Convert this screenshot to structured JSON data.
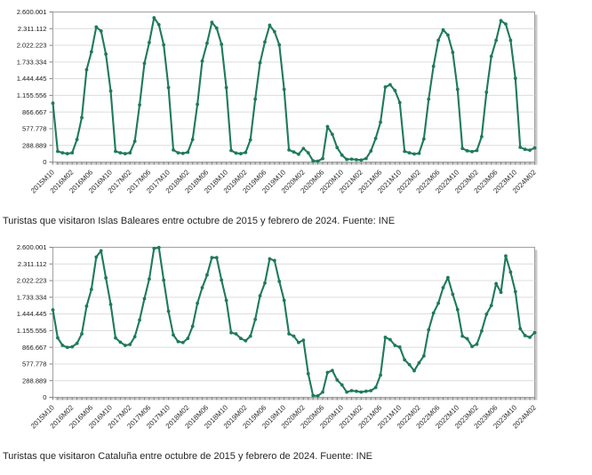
{
  "page": {
    "background": "#ffffff",
    "accent_line_color": "#1e7a5a",
    "gridline_color": "#dcdcdc",
    "plot_border_color": "#a0a0a0",
    "plot_shadow_color": "#c9c9c9",
    "axis_text_color": "#1a1a1a"
  },
  "chart_data": [
    {
      "type": "line",
      "title": "",
      "caption": "Turistas que visitaron Islas Baleares entre octubre de 2015 y febrero de 2024. Fuente: INE",
      "legend": "none",
      "grid": "horizontal",
      "marker": "circle",
      "line_color": "#1e7a5a",
      "ylim": [
        0,
        2600001
      ],
      "y_tick_labels": [
        "2.600.001",
        "2.311.112",
        "2.022.223",
        "1.733.334",
        "1.444.445",
        "1.155.556",
        "866.667",
        "577.778",
        "288.889",
        "0"
      ],
      "x_tick_step": 4,
      "x_tick_labels": [
        "2015M10",
        "2016M02",
        "2016M06",
        "2016M10",
        "2017M02",
        "2017M06",
        "2017M10",
        "2018M02",
        "2018M06",
        "2018M10",
        "2019M02",
        "2019M06",
        "2019M10",
        "2020M02",
        "2020M06",
        "2020M10",
        "2021M02",
        "2021M06",
        "2021M10",
        "2022M02",
        "2022M06",
        "2022M10",
        "2023M02",
        "2023M06",
        "2023M10",
        "2024M02"
      ],
      "x": [
        "2015M10",
        "2015M11",
        "2015M12",
        "2016M01",
        "2016M02",
        "2016M03",
        "2016M04",
        "2016M05",
        "2016M06",
        "2016M07",
        "2016M08",
        "2016M09",
        "2016M10",
        "2016M11",
        "2016M12",
        "2017M01",
        "2017M02",
        "2017M03",
        "2017M04",
        "2017M05",
        "2017M06",
        "2017M07",
        "2017M08",
        "2017M09",
        "2017M10",
        "2017M11",
        "2017M12",
        "2018M01",
        "2018M02",
        "2018M03",
        "2018M04",
        "2018M05",
        "2018M06",
        "2018M07",
        "2018M08",
        "2018M09",
        "2018M10",
        "2018M11",
        "2018M12",
        "2019M01",
        "2019M02",
        "2019M03",
        "2019M04",
        "2019M05",
        "2019M06",
        "2019M07",
        "2019M08",
        "2019M09",
        "2019M10",
        "2019M11",
        "2019M12",
        "2020M01",
        "2020M02",
        "2020M03",
        "2020M04",
        "2020M05",
        "2020M06",
        "2020M07",
        "2020M08",
        "2020M09",
        "2020M10",
        "2020M11",
        "2020M12",
        "2021M01",
        "2021M02",
        "2021M03",
        "2021M04",
        "2021M05",
        "2021M06",
        "2021M07",
        "2021M08",
        "2021M09",
        "2021M10",
        "2021M11",
        "2021M12",
        "2022M01",
        "2022M02",
        "2022M03",
        "2022M04",
        "2022M05",
        "2022M06",
        "2022M07",
        "2022M08",
        "2022M09",
        "2022M10",
        "2022M11",
        "2022M12",
        "2023M01",
        "2023M02",
        "2023M03",
        "2023M04",
        "2023M05",
        "2023M06",
        "2023M07",
        "2023M08",
        "2023M09",
        "2023M10",
        "2023M11",
        "2023M12",
        "2024M01",
        "2024M02"
      ],
      "series": [
        {
          "name": "Turistas Islas Baleares",
          "values": [
            1020000,
            185000,
            160000,
            145000,
            160000,
            390000,
            770000,
            1600000,
            1910000,
            2340000,
            2270000,
            1870000,
            1230000,
            185000,
            160000,
            145000,
            160000,
            360000,
            990000,
            1710000,
            2070000,
            2500000,
            2380000,
            2030000,
            1290000,
            210000,
            160000,
            150000,
            170000,
            390000,
            1000000,
            1750000,
            2060000,
            2420000,
            2320000,
            2040000,
            1290000,
            200000,
            155000,
            145000,
            165000,
            385000,
            1090000,
            1720000,
            2080000,
            2370000,
            2260000,
            2030000,
            1260000,
            210000,
            175000,
            135000,
            235000,
            160000,
            20000,
            15000,
            60000,
            615000,
            480000,
            250000,
            120000,
            45000,
            50000,
            40000,
            35000,
            60000,
            190000,
            410000,
            690000,
            1300000,
            1340000,
            1240000,
            1030000,
            185000,
            160000,
            140000,
            150000,
            400000,
            1090000,
            1660000,
            2110000,
            2290000,
            2200000,
            1900000,
            1260000,
            235000,
            195000,
            180000,
            200000,
            440000,
            1210000,
            1830000,
            2110000,
            2450000,
            2390000,
            2110000,
            1450000,
            255000,
            220000,
            205000,
            245000
          ]
        }
      ]
    },
    {
      "type": "line",
      "title": "",
      "caption": "Turistas que visitaron Cataluña entre octubre de 2015 y febrero de 2024. Fuente: INE",
      "legend": "none",
      "grid": "horizontal",
      "marker": "circle",
      "line_color": "#1e7a5a",
      "ylim": [
        0,
        2600001
      ],
      "y_tick_labels": [
        "2.600.001",
        "2.311.112",
        "2.022.223",
        "1.733.334",
        "1.444.445",
        "1.155.556",
        "866.667",
        "577.778",
        "288.889",
        "0"
      ],
      "x_tick_step": 4,
      "x_tick_labels": [
        "2015M10",
        "2016M02",
        "2016M06",
        "2016M10",
        "2017M02",
        "2017M06",
        "2017M10",
        "2018M02",
        "2018M06",
        "2018M10",
        "2019M02",
        "2019M06",
        "2019M10",
        "2020M02",
        "2020M06",
        "2020M10",
        "2021M02",
        "2021M06",
        "2021M10",
        "2022M02",
        "2022M06",
        "2022M10",
        "2023M02",
        "2023M06",
        "2023M10",
        "2024M02"
      ],
      "x": [
        "2015M10",
        "2015M11",
        "2015M12",
        "2016M01",
        "2016M02",
        "2016M03",
        "2016M04",
        "2016M05",
        "2016M06",
        "2016M07",
        "2016M08",
        "2016M09",
        "2016M10",
        "2016M11",
        "2016M12",
        "2017M01",
        "2017M02",
        "2017M03",
        "2017M04",
        "2017M05",
        "2017M06",
        "2017M07",
        "2017M08",
        "2017M09",
        "2017M10",
        "2017M11",
        "2017M12",
        "2018M01",
        "2018M02",
        "2018M03",
        "2018M04",
        "2018M05",
        "2018M06",
        "2018M07",
        "2018M08",
        "2018M09",
        "2018M10",
        "2018M11",
        "2018M12",
        "2019M01",
        "2019M02",
        "2019M03",
        "2019M04",
        "2019M05",
        "2019M06",
        "2019M07",
        "2019M08",
        "2019M09",
        "2019M10",
        "2019M11",
        "2019M12",
        "2020M01",
        "2020M02",
        "2020M03",
        "2020M04",
        "2020M05",
        "2020M06",
        "2020M07",
        "2020M08",
        "2020M09",
        "2020M10",
        "2020M11",
        "2020M12",
        "2021M01",
        "2021M02",
        "2021M03",
        "2021M04",
        "2021M05",
        "2021M06",
        "2021M07",
        "2021M08",
        "2021M09",
        "2021M10",
        "2021M11",
        "2021M12",
        "2022M01",
        "2022M02",
        "2022M03",
        "2022M04",
        "2022M05",
        "2022M06",
        "2022M07",
        "2022M08",
        "2022M09",
        "2022M10",
        "2022M11",
        "2022M12",
        "2023M01",
        "2023M02",
        "2023M03",
        "2023M04",
        "2023M05",
        "2023M06",
        "2023M07",
        "2023M08",
        "2023M09",
        "2023M10",
        "2023M11",
        "2023M12",
        "2024M01",
        "2024M02"
      ],
      "series": [
        {
          "name": "Turistas Cataluña",
          "values": [
            1515000,
            1030000,
            900000,
            865000,
            875000,
            935000,
            1100000,
            1580000,
            1870000,
            2430000,
            2540000,
            2070000,
            1610000,
            1030000,
            955000,
            900000,
            915000,
            1050000,
            1340000,
            1710000,
            2050000,
            2580000,
            2595000,
            2030000,
            1490000,
            1080000,
            965000,
            950000,
            1020000,
            1230000,
            1630000,
            1900000,
            2120000,
            2420000,
            2420000,
            2030000,
            1680000,
            1120000,
            1100000,
            1020000,
            980000,
            1060000,
            1350000,
            1760000,
            1980000,
            2400000,
            2370000,
            2010000,
            1680000,
            1100000,
            1060000,
            950000,
            990000,
            410000,
            30000,
            25000,
            90000,
            430000,
            465000,
            300000,
            215000,
            90000,
            115000,
            105000,
            90000,
            105000,
            115000,
            170000,
            385000,
            1040000,
            1000000,
            900000,
            870000,
            650000,
            565000,
            460000,
            597000,
            717000,
            1170000,
            1460000,
            1630000,
            1900000,
            2075000,
            1785000,
            1520000,
            1060000,
            1015000,
            880000,
            920000,
            1150000,
            1440000,
            1590000,
            1970000,
            1820000,
            2450000,
            2170000,
            1830000,
            1190000,
            1070000,
            1040000,
            1120000
          ]
        }
      ]
    }
  ]
}
